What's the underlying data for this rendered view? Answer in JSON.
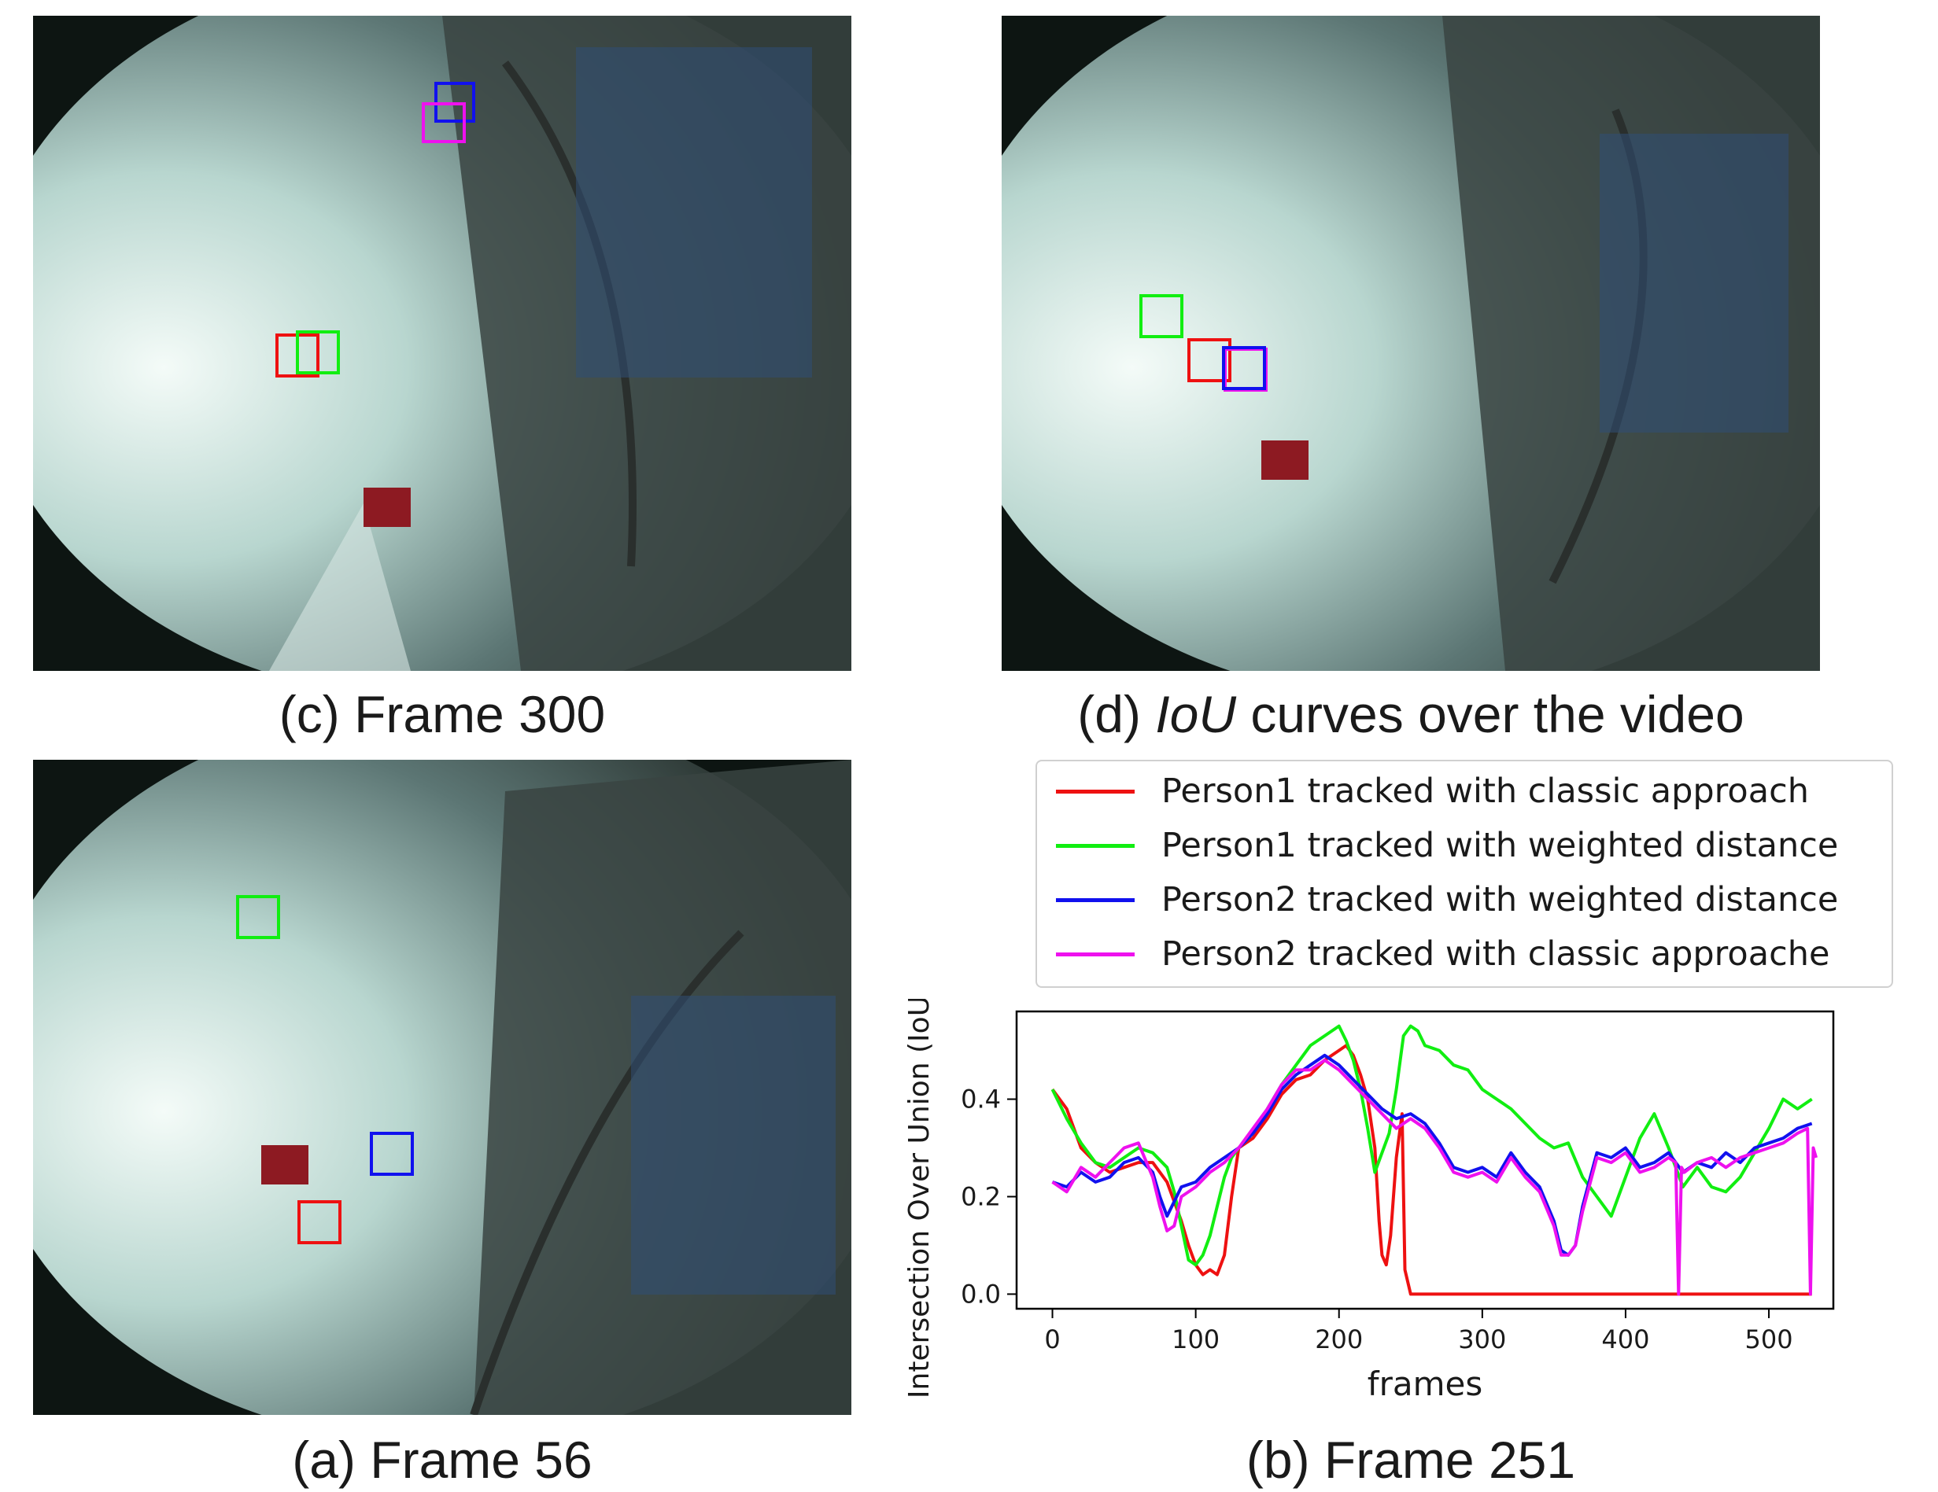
{
  "captions": {
    "c": "(c) Frame 300",
    "d_prefix": "(d) ",
    "d_italic": "IoU",
    "d_suffix": " curves over the video",
    "a": "(a) Frame 56",
    "b": "(b) Frame 251"
  },
  "colors": {
    "red": "#ee1111",
    "green": "#11ee11",
    "blue": "#1111ee",
    "magenta": "#ee11ee"
  },
  "chart_data": {
    "type": "line",
    "xlabel": "frames",
    "ylabel": "Intersection Over Union (IoU)",
    "xlim": [
      -25,
      545
    ],
    "ylim": [
      -0.03,
      0.58
    ],
    "xticks": [
      0,
      100,
      200,
      300,
      400,
      500
    ],
    "yticks": [
      0.0,
      0.2,
      0.4
    ],
    "ytick_labels": [
      "0.0",
      "0.2",
      "0.4"
    ],
    "legend_position": "above plot",
    "series": [
      {
        "name": "Person1 tracked with classic approach",
        "color": "#ee1111",
        "x": [
          0,
          10,
          20,
          30,
          40,
          50,
          60,
          70,
          80,
          90,
          95,
          100,
          105,
          110,
          115,
          120,
          125,
          130,
          140,
          150,
          160,
          170,
          180,
          190,
          200,
          205,
          210,
          215,
          220,
          225,
          228,
          230,
          233,
          236,
          240,
          244,
          246,
          250,
          300,
          350,
          400,
          450,
          500,
          530
        ],
        "y": [
          0.42,
          0.38,
          0.3,
          0.27,
          0.25,
          0.26,
          0.27,
          0.27,
          0.23,
          0.15,
          0.1,
          0.06,
          0.04,
          0.05,
          0.04,
          0.08,
          0.2,
          0.3,
          0.32,
          0.36,
          0.41,
          0.44,
          0.45,
          0.48,
          0.5,
          0.51,
          0.49,
          0.45,
          0.4,
          0.3,
          0.15,
          0.08,
          0.06,
          0.12,
          0.28,
          0.37,
          0.05,
          0.0,
          0.0,
          0.0,
          0.0,
          0.0,
          0.0,
          0.0
        ]
      },
      {
        "name": "Person1 tracked with weighted distance",
        "color": "#11ee11",
        "x": [
          0,
          10,
          20,
          30,
          40,
          50,
          60,
          70,
          80,
          85,
          90,
          95,
          100,
          105,
          110,
          115,
          120,
          125,
          130,
          140,
          150,
          160,
          170,
          180,
          190,
          200,
          205,
          210,
          215,
          220,
          225,
          230,
          235,
          240,
          245,
          250,
          255,
          260,
          270,
          280,
          290,
          300,
          310,
          320,
          330,
          340,
          350,
          360,
          370,
          380,
          390,
          400,
          410,
          420,
          430,
          440,
          450,
          460,
          470,
          480,
          490,
          500,
          510,
          520,
          530
        ],
        "y": [
          0.42,
          0.36,
          0.31,
          0.27,
          0.26,
          0.28,
          0.3,
          0.29,
          0.26,
          0.21,
          0.14,
          0.07,
          0.06,
          0.08,
          0.12,
          0.18,
          0.24,
          0.28,
          0.3,
          0.33,
          0.38,
          0.43,
          0.47,
          0.51,
          0.53,
          0.55,
          0.52,
          0.48,
          0.42,
          0.34,
          0.25,
          0.29,
          0.33,
          0.42,
          0.53,
          0.55,
          0.54,
          0.51,
          0.5,
          0.47,
          0.46,
          0.42,
          0.4,
          0.38,
          0.35,
          0.32,
          0.3,
          0.31,
          0.24,
          0.2,
          0.16,
          0.24,
          0.32,
          0.37,
          0.3,
          0.22,
          0.26,
          0.22,
          0.21,
          0.24,
          0.29,
          0.34,
          0.4,
          0.38,
          0.4
        ]
      },
      {
        "name": "Person2 tracked with weighted distance",
        "color": "#1111ee",
        "x": [
          0,
          10,
          20,
          30,
          40,
          50,
          60,
          70,
          75,
          80,
          85,
          90,
          100,
          110,
          120,
          130,
          140,
          150,
          160,
          170,
          180,
          190,
          200,
          210,
          220,
          230,
          240,
          250,
          260,
          270,
          280,
          290,
          300,
          310,
          320,
          330,
          340,
          350,
          355,
          360,
          365,
          370,
          380,
          390,
          400,
          410,
          420,
          430,
          440,
          450,
          460,
          470,
          480,
          490,
          500,
          510,
          520,
          530
        ],
        "y": [
          0.23,
          0.22,
          0.25,
          0.23,
          0.24,
          0.27,
          0.28,
          0.25,
          0.2,
          0.16,
          0.19,
          0.22,
          0.23,
          0.26,
          0.28,
          0.3,
          0.33,
          0.37,
          0.42,
          0.45,
          0.47,
          0.49,
          0.47,
          0.44,
          0.41,
          0.38,
          0.36,
          0.37,
          0.35,
          0.31,
          0.26,
          0.25,
          0.26,
          0.24,
          0.29,
          0.25,
          0.22,
          0.15,
          0.09,
          0.08,
          0.1,
          0.18,
          0.29,
          0.28,
          0.3,
          0.26,
          0.27,
          0.29,
          0.25,
          0.27,
          0.26,
          0.29,
          0.27,
          0.3,
          0.31,
          0.32,
          0.34,
          0.35
        ]
      },
      {
        "name": "Person2 tracked with classic approache",
        "color": "#ee11ee",
        "x": [
          0,
          10,
          20,
          30,
          40,
          50,
          60,
          70,
          75,
          80,
          85,
          90,
          100,
          110,
          120,
          130,
          140,
          150,
          160,
          170,
          180,
          190,
          200,
          210,
          220,
          230,
          240,
          250,
          260,
          270,
          280,
          290,
          300,
          310,
          320,
          330,
          340,
          350,
          355,
          360,
          365,
          370,
          380,
          390,
          400,
          410,
          420,
          430,
          435,
          437,
          439,
          441,
          450,
          460,
          470,
          480,
          490,
          500,
          510,
          520,
          527,
          529,
          531,
          533
        ],
        "y": [
          0.23,
          0.21,
          0.26,
          0.24,
          0.27,
          0.3,
          0.31,
          0.24,
          0.18,
          0.13,
          0.14,
          0.2,
          0.22,
          0.25,
          0.27,
          0.3,
          0.34,
          0.38,
          0.43,
          0.46,
          0.46,
          0.48,
          0.46,
          0.43,
          0.4,
          0.37,
          0.34,
          0.36,
          0.34,
          0.3,
          0.25,
          0.24,
          0.25,
          0.23,
          0.28,
          0.24,
          0.21,
          0.14,
          0.08,
          0.08,
          0.1,
          0.17,
          0.28,
          0.27,
          0.29,
          0.25,
          0.26,
          0.28,
          0.27,
          0.0,
          0.26,
          0.25,
          0.27,
          0.28,
          0.26,
          0.28,
          0.29,
          0.3,
          0.31,
          0.33,
          0.34,
          0.0,
          0.3,
          0.28
        ]
      }
    ]
  }
}
